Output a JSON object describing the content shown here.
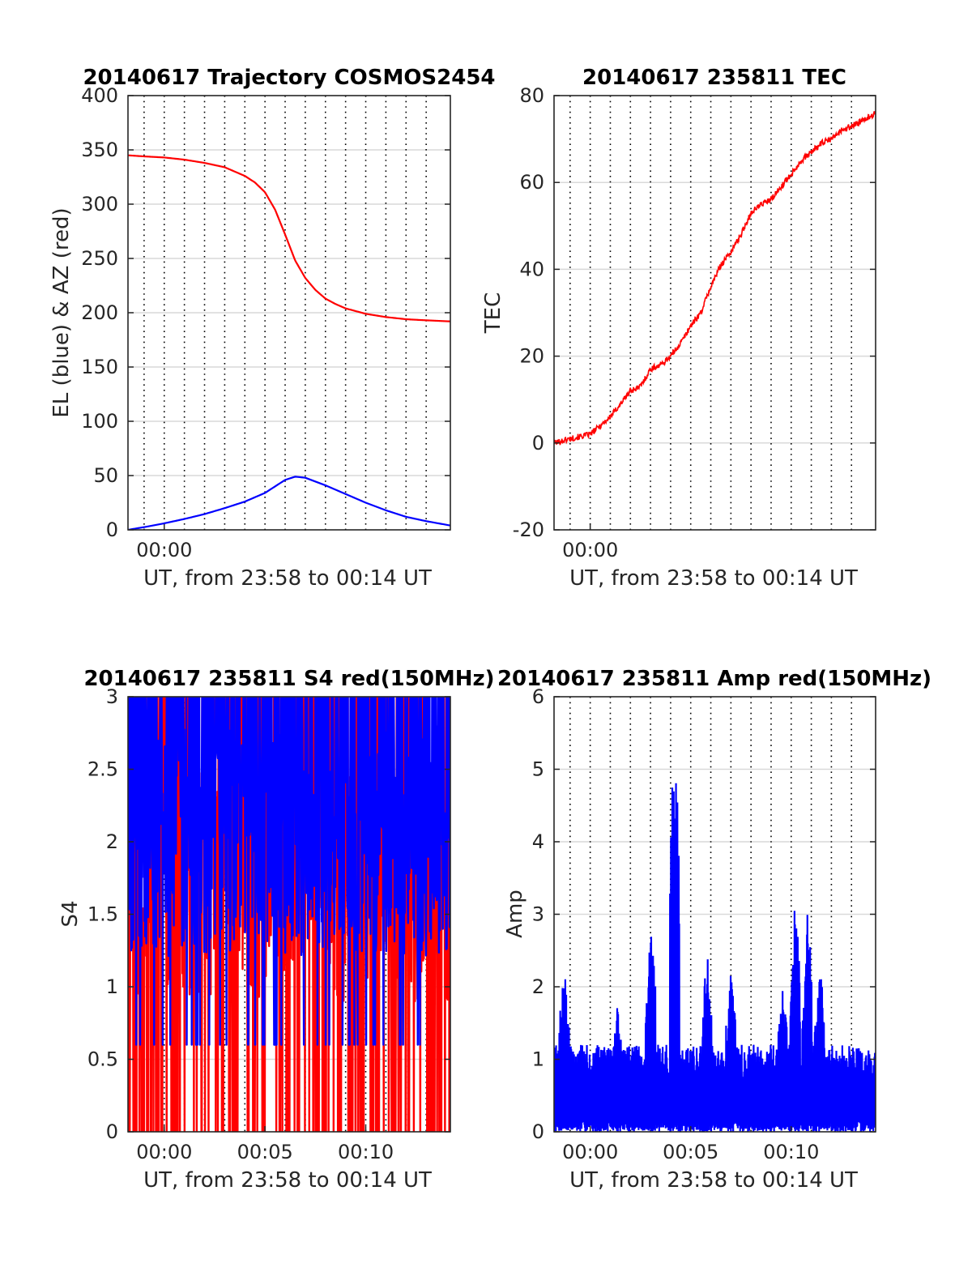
{
  "colors": {
    "red": "#ff0000",
    "blue": "#0000ff",
    "grid": "#d9d9d9",
    "axis": "#262626"
  },
  "chart_data": [
    {
      "id": "trajectory",
      "type": "line",
      "title": "20140617 Trajectory COSMOS2454",
      "xlabel": "UT, from 23:58 to 00:14 UT",
      "ylabel": "EL (blue) & AZ (red)",
      "xlim": [
        -1.8,
        14.2
      ],
      "ylim": [
        0,
        400
      ],
      "yticks": [
        0,
        50,
        100,
        150,
        200,
        250,
        300,
        350,
        400
      ],
      "xticks": [
        {
          "v": 0,
          "label": "00:00"
        }
      ],
      "minute_gridlines": [
        -1,
        0,
        1,
        2,
        3,
        4,
        5,
        6,
        7,
        8,
        9,
        10,
        11,
        12,
        13
      ],
      "grid": true,
      "series": [
        {
          "color": "#ff0000",
          "x": [
            -1.8,
            -1,
            0,
            1,
            2,
            3,
            4,
            4.5,
            5,
            5.5,
            6,
            6.5,
            7,
            7.5,
            8,
            8.5,
            9,
            10,
            11,
            12,
            13,
            14.2
          ],
          "y": [
            345,
            344,
            343,
            341,
            338,
            334,
            326,
            320,
            311,
            295,
            272,
            248,
            232,
            221,
            213,
            208,
            204,
            199,
            196,
            194,
            193,
            192
          ]
        },
        {
          "color": "#0000ff",
          "x": [
            -1.8,
            -1,
            0,
            1,
            2,
            3,
            4,
            5,
            5.5,
            6,
            6.5,
            7,
            8,
            9,
            10,
            11,
            12,
            13,
            14.2
          ],
          "y": [
            0,
            2.5,
            6,
            10,
            14.5,
            20,
            26,
            34,
            40,
            46,
            49,
            48,
            41,
            33,
            25,
            18,
            12,
            8,
            4
          ]
        }
      ]
    },
    {
      "id": "tec",
      "type": "line",
      "title": "20140617 235811 TEC",
      "xlabel": "UT, from 23:58 to 00:14 UT",
      "ylabel": "TEC",
      "xlim": [
        -1.8,
        14.2
      ],
      "ylim": [
        -20,
        80
      ],
      "yticks": [
        -20,
        0,
        20,
        40,
        60,
        80
      ],
      "xticks": [
        {
          "v": 0,
          "label": "00:00"
        }
      ],
      "minute_gridlines": [
        -1,
        0,
        1,
        2,
        3,
        4,
        5,
        6,
        7,
        8,
        9,
        10,
        11,
        12,
        13
      ],
      "grid": true,
      "series": [
        {
          "color": "#ff0000",
          "noise": 0.7,
          "x": [
            -1.8,
            -1,
            0,
            0.5,
            1,
            1.5,
            2,
            2.5,
            3,
            3.5,
            4,
            4.5,
            5,
            5.5,
            6,
            6.5,
            7,
            7.5,
            8,
            8.5,
            9,
            9.5,
            10,
            10.5,
            11,
            11.5,
            12,
            12.5,
            13,
            13.5,
            14.2
          ],
          "y": [
            0,
            1,
            2,
            4,
            6,
            9,
            12,
            13,
            17,
            18,
            20,
            23,
            27,
            30,
            36,
            41,
            44,
            48,
            53,
            55,
            56,
            59,
            62,
            65,
            67,
            69,
            70,
            72,
            73,
            74,
            76
          ]
        }
      ]
    },
    {
      "id": "s4",
      "type": "line",
      "title": "20140617 235811 S4 red(150MHz)",
      "xlabel": "UT, from 23:58 to 00:14 UT",
      "ylabel": "S4",
      "xlim": [
        -1.8,
        14.2
      ],
      "ylim": [
        0,
        3
      ],
      "yticks": [
        0,
        0.5,
        1,
        1.5,
        2,
        2.5,
        3
      ],
      "xticks": [
        {
          "v": 0,
          "label": "00:00"
        },
        {
          "v": 5,
          "label": "00:05"
        },
        {
          "v": 10,
          "label": "00:10"
        }
      ],
      "minute_gridlines": [
        -1,
        0,
        1,
        2,
        3,
        4,
        5,
        6,
        7,
        8,
        9,
        10,
        11,
        12,
        13
      ],
      "grid": true,
      "series": [
        {
          "color": "#ff0000",
          "kind": "noise",
          "low": 0,
          "high": 3,
          "base": 1.8,
          "dropProb": 0.18,
          "seed": 11
        },
        {
          "color": "#0000ff",
          "kind": "noise",
          "low": 0.6,
          "high": 3,
          "base": 2.1,
          "dropProb": 0.03,
          "seed": 29
        }
      ]
    },
    {
      "id": "amp",
      "type": "line",
      "title": "20140617 235811 Amp red(150MHz)",
      "xlabel": "UT, from 23:58 to 00:14 UT",
      "ylabel": "Amp",
      "xlim": [
        -1.8,
        14.2
      ],
      "ylim": [
        0,
        6
      ],
      "yticks": [
        0,
        1,
        2,
        3,
        4,
        5,
        6
      ],
      "xticks": [
        {
          "v": 0,
          "label": "00:00"
        },
        {
          "v": 5,
          "label": "00:05"
        },
        {
          "v": 10,
          "label": "00:10"
        }
      ],
      "minute_gridlines": [
        -1,
        0,
        1,
        2,
        3,
        4,
        5,
        6,
        7,
        8,
        9,
        10,
        11,
        12,
        13
      ],
      "grid": true,
      "series": [
        {
          "color": "#0000ff",
          "kind": "spiky",
          "base": 1.2,
          "seed": 7,
          "peaks": [
            {
              "x": -1.3,
              "v": 2.3
            },
            {
              "x": 1.4,
              "v": 2.0
            },
            {
              "x": 3.0,
              "v": 3.1
            },
            {
              "x": 4.2,
              "v": 5.7
            },
            {
              "x": 5.8,
              "v": 2.6
            },
            {
              "x": 7.0,
              "v": 2.3
            },
            {
              "x": 9.6,
              "v": 2.1
            },
            {
              "x": 10.2,
              "v": 3.3
            },
            {
              "x": 10.8,
              "v": 3.2
            },
            {
              "x": 11.4,
              "v": 2.5
            }
          ]
        }
      ]
    }
  ]
}
